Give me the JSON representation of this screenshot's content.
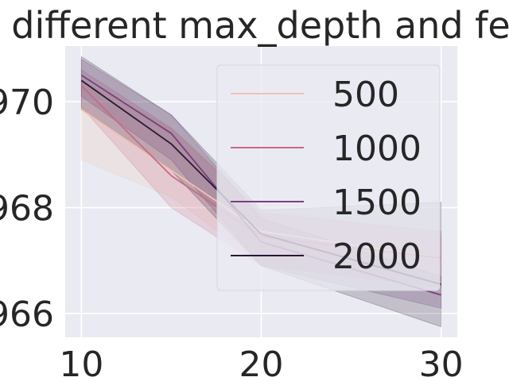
{
  "chart_data": {
    "type": "line",
    "title": "different max_depth and fe",
    "xlabel": "",
    "ylabel": "",
    "x": [
      10,
      15,
      20,
      30
    ],
    "xlim": [
      9.1,
      30.9
    ],
    "ylim": [
      0.96555,
      0.97105
    ],
    "x_ticks": [
      10,
      20,
      30
    ],
    "y_ticks": [
      0.966,
      0.968,
      0.97
    ],
    "y_tick_labels": [
      "966",
      "968",
      "970"
    ],
    "grid": true,
    "legend_placement": "top-right",
    "series": [
      {
        "name": "500",
        "color": "#f0c3b0",
        "values": [
          0.96985,
          0.9687,
          0.96755,
          0.96705
        ],
        "ci_low": [
          0.9689,
          0.9682,
          0.96695,
          0.96665
        ],
        "ci_high": [
          0.9704,
          0.9695,
          0.968,
          0.96745
        ]
      },
      {
        "name": "1000",
        "color": "#c66a84",
        "values": [
          0.9703,
          0.9686,
          0.96745,
          0.96705
        ],
        "ci_low": [
          0.9699,
          0.968,
          0.9669,
          0.9665
        ],
        "ci_high": [
          0.9706,
          0.9695,
          0.9679,
          0.96755
        ]
      },
      {
        "name": "1500",
        "color": "#7a3f7e",
        "values": [
          0.9705,
          0.9694,
          0.96735,
          0.96635
        ],
        "ci_low": [
          0.9701,
          0.9689,
          0.9669,
          0.9661
        ],
        "ci_high": [
          0.9708,
          0.96975,
          0.9678,
          0.9667
        ]
      },
      {
        "name": "2000",
        "color": "#2a1733",
        "values": [
          0.9704,
          0.9692,
          0.9675,
          0.96655
        ],
        "ci_low": [
          0.96985,
          0.9687,
          0.9669,
          0.96575
        ],
        "ci_high": [
          0.97085,
          0.96975,
          0.96795,
          0.9681
        ]
      }
    ]
  }
}
